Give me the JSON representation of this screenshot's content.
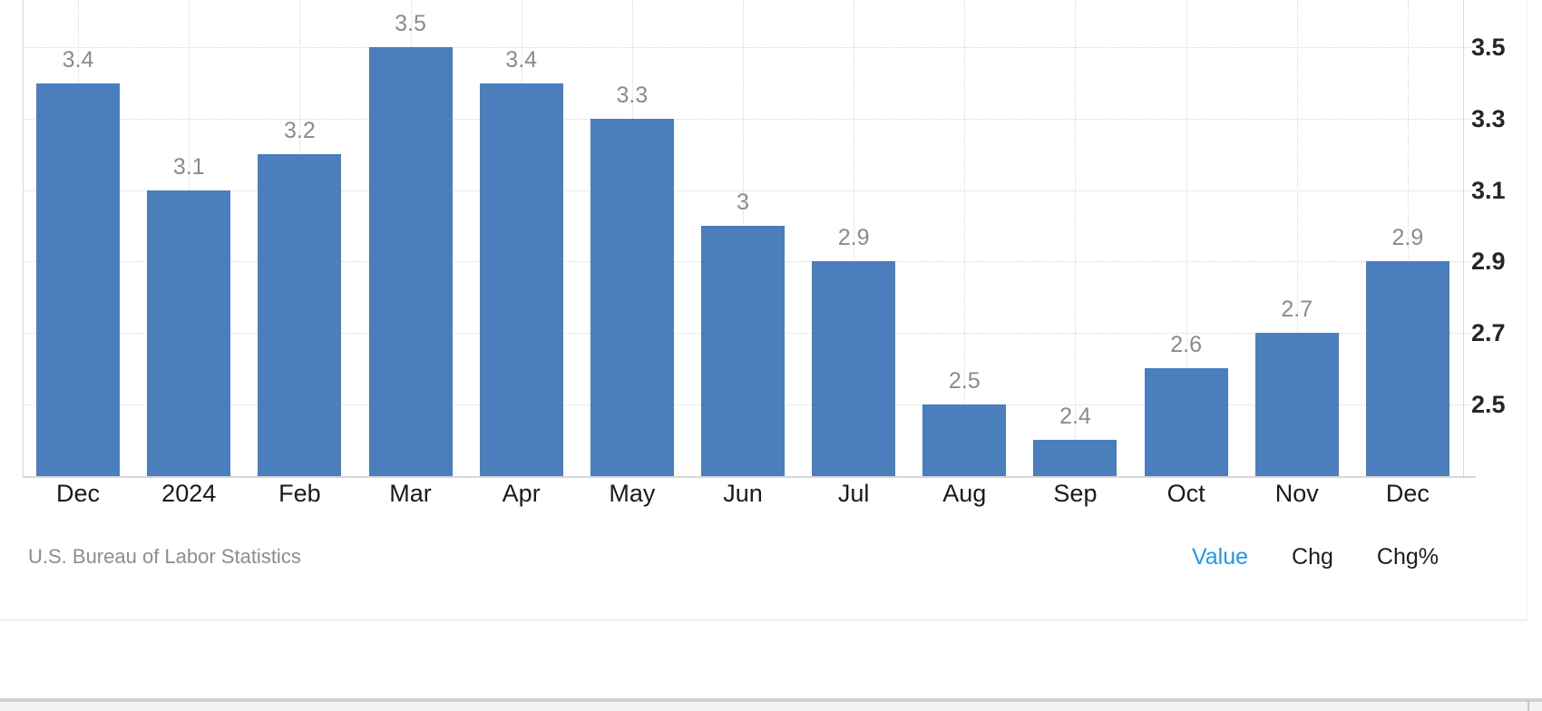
{
  "chart_data": {
    "type": "bar",
    "categories": [
      "Dec",
      "2024",
      "Feb",
      "Mar",
      "Apr",
      "May",
      "Jun",
      "Jul",
      "Aug",
      "Sep",
      "Oct",
      "Nov",
      "Dec"
    ],
    "values": [
      3.4,
      3.1,
      3.2,
      3.5,
      3.4,
      3.3,
      3,
      2.9,
      2.5,
      2.4,
      2.6,
      2.7,
      2.9
    ],
    "value_labels": [
      "3.4",
      "3.1",
      "3.2",
      "3.5",
      "3.4",
      "3.3",
      "3",
      "2.9",
      "2.5",
      "2.4",
      "2.6",
      "2.7",
      "2.9"
    ],
    "y_ticks": [
      "3.5",
      "3.3",
      "3.1",
      "2.9",
      "2.7",
      "2.5"
    ],
    "y_tick_values": [
      3.5,
      3.3,
      3.1,
      2.9,
      2.7,
      2.5
    ],
    "ylim": [
      2.298,
      3.633
    ],
    "y_axis_side": "right",
    "grid": "dotted-horizontal-and-vertical",
    "legend": "none",
    "title": "",
    "xlabel": "",
    "ylabel": ""
  },
  "footer": {
    "source_label": "U.S. Bureau of Labor Statistics",
    "modes": [
      {
        "label": "Value",
        "active": true
      },
      {
        "label": "Chg",
        "active": false
      },
      {
        "label": "Chg%",
        "active": false
      }
    ]
  },
  "colors": {
    "bar": "#4a7ebc",
    "bar_value_label": "#8b8b8b",
    "active_mode_blue": "#2196f3",
    "inactive_mode_text": "#1d1d1d",
    "axis_tick_text": "#262626",
    "month_text": "#1a1a1a",
    "source_text": "#8d8d8d",
    "gridline": "#d6d6d6",
    "axis_line": "#d9d9d9",
    "bottom_band_fill": "#f4f4f4",
    "bottom_band_border": "#d2d2d2"
  }
}
